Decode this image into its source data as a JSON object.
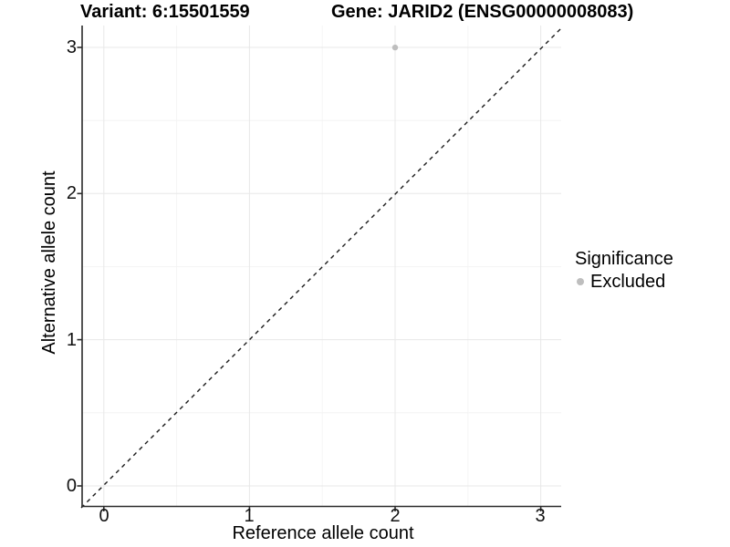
{
  "header": {
    "title_left": "Variant: 6:15501559",
    "title_right": "Gene: JARID2 (ENSG00000008083)"
  },
  "chart_data": {
    "type": "scatter",
    "title": "Variant: 6:15501559   Gene: JARID2 (ENSG00000008083)",
    "xlabel": "Reference allele count",
    "ylabel": "Alternative allele count",
    "xlim": [
      -0.15,
      3.15
    ],
    "ylim": [
      -0.15,
      3.15
    ],
    "x_ticks": [
      "0",
      "1",
      "2",
      "3"
    ],
    "y_ticks": [
      "0",
      "1",
      "2",
      "3"
    ],
    "grid": {
      "major_color": "#e8e8e8",
      "minor_color": "#f4f4f4",
      "minor_interval": 0.5
    },
    "reference_line": {
      "equation": "y = x",
      "style": "dashed",
      "color": "#1a1a1a"
    },
    "series": [
      {
        "name": "Excluded",
        "color": "#bebebe",
        "points": [
          {
            "x": 2,
            "y": 3
          }
        ]
      }
    ],
    "legend": {
      "title": "Significance",
      "position": "right",
      "items": [
        {
          "label": "Excluded",
          "color": "#bebebe"
        }
      ]
    }
  }
}
